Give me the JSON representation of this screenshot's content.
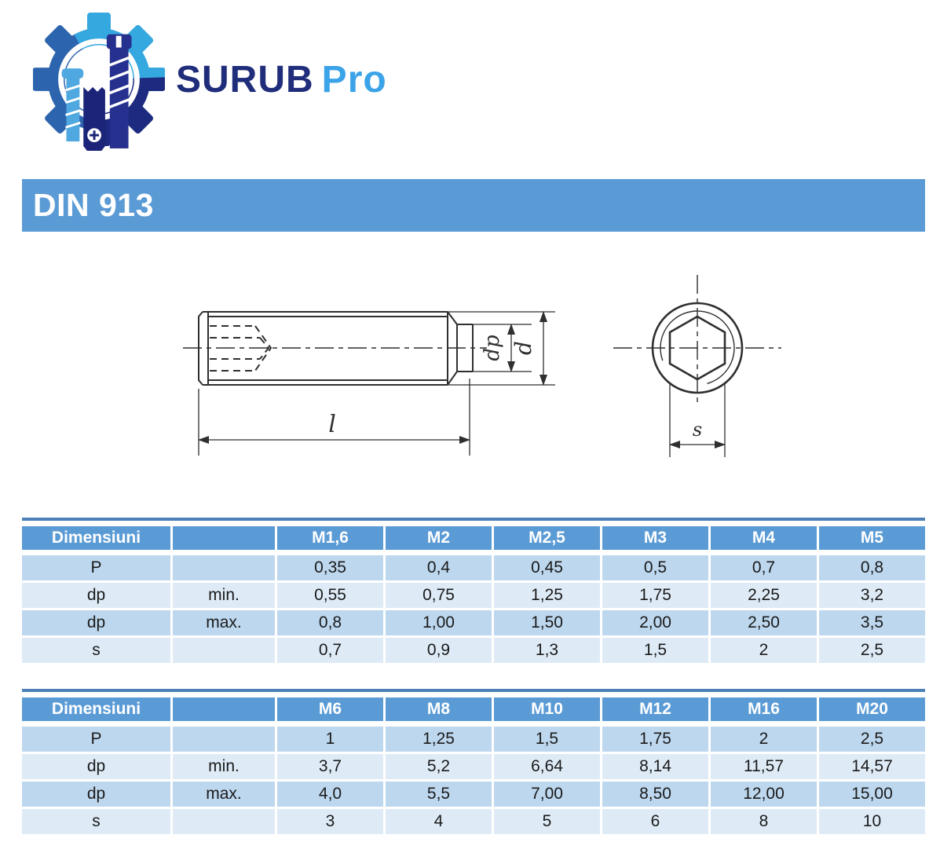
{
  "logo": {
    "brand_primary": "SURUB",
    "brand_secondary": "Pro"
  },
  "banner": {
    "title": "DIN 913"
  },
  "drawing": {
    "labels": {
      "point_diameter": "dp",
      "thread_diameter": "d",
      "length": "l",
      "hex_size": "s"
    }
  },
  "tables": [
    {
      "header": [
        "Dimensiuni",
        "",
        "M1,6",
        "M2",
        "M2,5",
        "M3",
        "M4",
        "M5"
      ],
      "rows": [
        [
          "P",
          "",
          "0,35",
          "0,4",
          "0,45",
          "0,5",
          "0,7",
          "0,8"
        ],
        [
          "dp",
          "min.",
          "0,55",
          "0,75",
          "1,25",
          "1,75",
          "2,25",
          "3,2"
        ],
        [
          "dp",
          "max.",
          "0,8",
          "1,00",
          "1,50",
          "2,00",
          "2,50",
          "3,5"
        ],
        [
          "s",
          "",
          "0,7",
          "0,9",
          "1,3",
          "1,5",
          "2",
          "2,5"
        ]
      ]
    },
    {
      "header": [
        "Dimensiuni",
        "",
        "M6",
        "M8",
        "M10",
        "M12",
        "M16",
        "M20"
      ],
      "rows": [
        [
          "P",
          "",
          "1",
          "1,25",
          "1,5",
          "1,75",
          "2",
          "2,5"
        ],
        [
          "dp",
          "min.",
          "3,7",
          "5,2",
          "6,64",
          "8,14",
          "11,57",
          "14,57"
        ],
        [
          "dp",
          "max.",
          "4,0",
          "5,5",
          "7,00",
          "8,50",
          "12,00",
          "15,00"
        ],
        [
          "s",
          "",
          "3",
          "4",
          "5",
          "6",
          "8",
          "10"
        ]
      ]
    }
  ],
  "colors": {
    "accent_blue": "#5b9bd5",
    "band_dark": "#bdd7ee",
    "band_light": "#deebf7",
    "brand_navy": "#1f2d7a",
    "brand_light_blue": "#3ba3e8",
    "line_color": "#2f2f2f"
  }
}
